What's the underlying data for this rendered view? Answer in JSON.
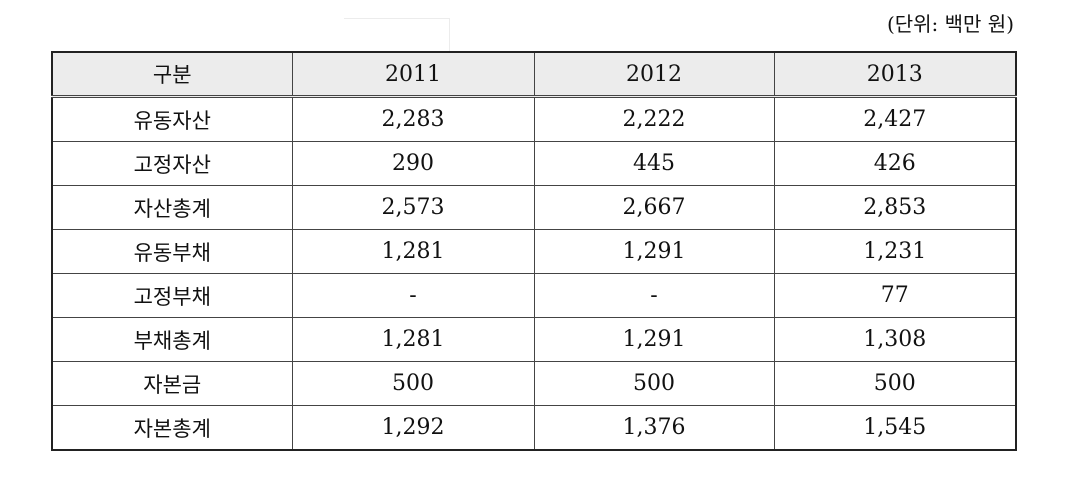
{
  "unit_note": "(단위: 백만 원)",
  "table": {
    "headers": [
      "구분",
      "2011",
      "2012",
      "2013"
    ],
    "rows": [
      [
        "유동자산",
        "2,283",
        "2,222",
        "2,427"
      ],
      [
        "고정자산",
        "290",
        "445",
        "426"
      ],
      [
        "자산총계",
        "2,573",
        "2,667",
        "2,853"
      ],
      [
        "유동부채",
        "1,281",
        "1,291",
        "1,231"
      ],
      [
        "고정부채",
        "-",
        "-",
        "77"
      ],
      [
        "부채총계",
        "1,281",
        "1,291",
        "1,308"
      ],
      [
        "자본금",
        "500",
        "500",
        "500"
      ],
      [
        "자본총계",
        "1,292",
        "1,376",
        "1,545"
      ]
    ]
  }
}
